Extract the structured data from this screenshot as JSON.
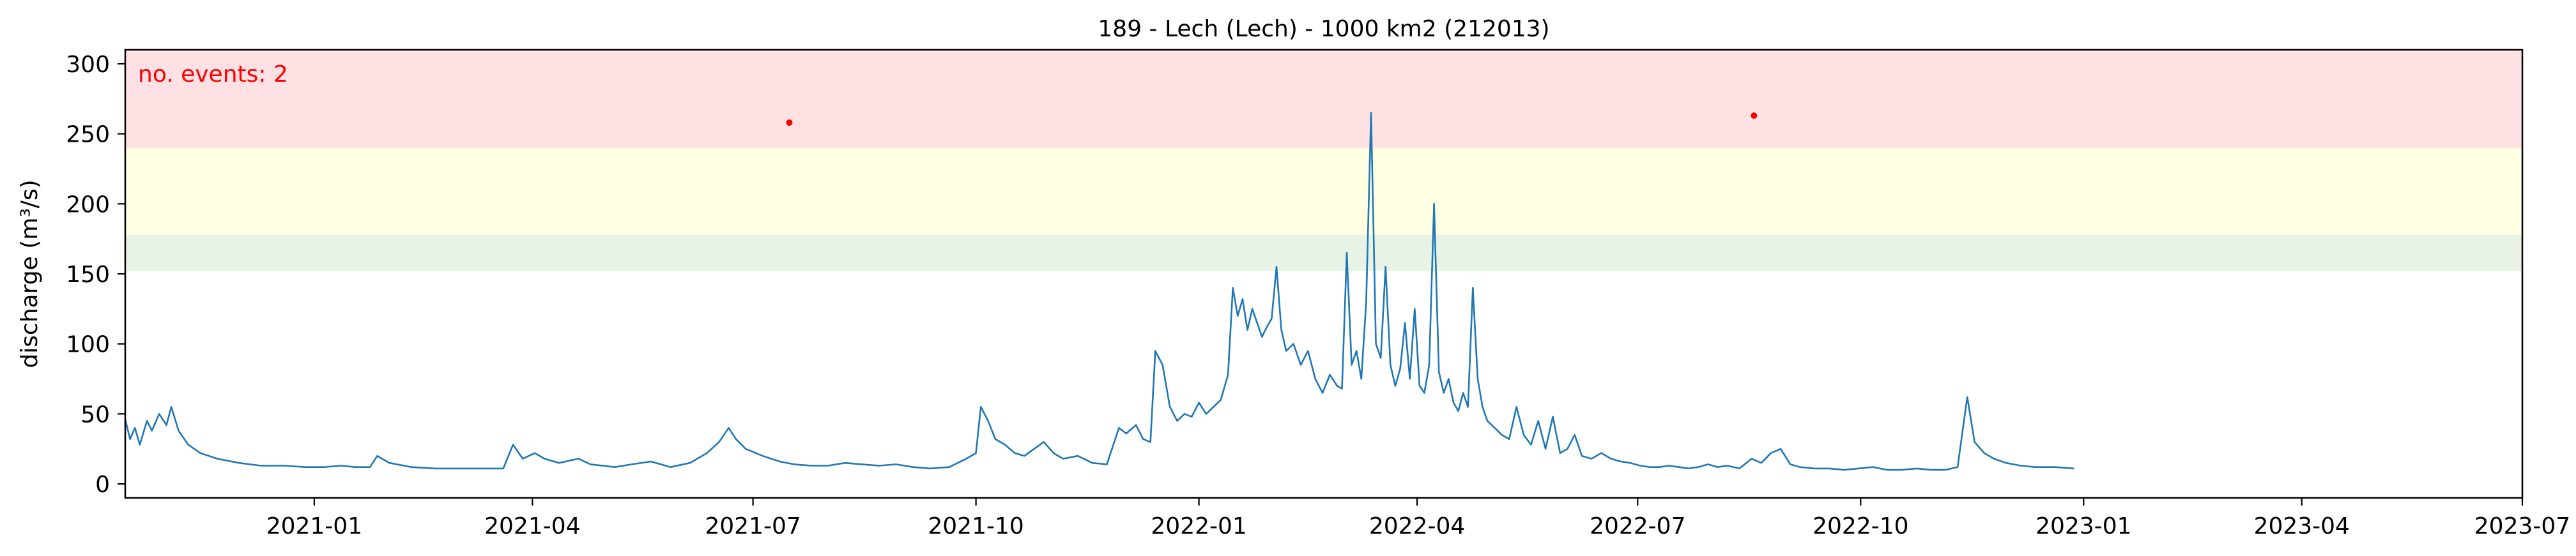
{
  "chart_data": {
    "type": "line",
    "title": "189 - Lech (Lech) - 1000 km2 (212013)",
    "xlabel": "",
    "ylabel": "discharge (m³/s)",
    "annotation": "no. events: 2",
    "x_range": [
      "2020-10-15",
      "2023-07-01"
    ],
    "ylim": [
      -10,
      310
    ],
    "x_ticks": [
      "2021-01",
      "2021-04",
      "2021-07",
      "2021-10",
      "2022-01",
      "2022-04",
      "2022-07",
      "2022-10",
      "2023-01",
      "2023-04",
      "2023-07"
    ],
    "y_ticks": [
      0,
      50,
      100,
      150,
      200,
      250,
      300
    ],
    "grid": false,
    "threshold_bands": [
      {
        "name": "band-green",
        "from": 152,
        "to": 178,
        "color": "#e8f3e6"
      },
      {
        "name": "band-yellow",
        "from": 178,
        "to": 240,
        "color": "#ffffe1"
      },
      {
        "name": "band-red",
        "from": 240,
        "to": 310,
        "color": "#ffe1e4"
      }
    ],
    "series": [
      {
        "color": "#1f77b4",
        "points": [
          [
            "2020-10-15",
            46
          ],
          [
            "2020-10-17",
            32
          ],
          [
            "2020-10-19",
            40
          ],
          [
            "2020-10-21",
            28
          ],
          [
            "2020-10-24",
            45
          ],
          [
            "2020-10-26",
            38
          ],
          [
            "2020-10-29",
            50
          ],
          [
            "2020-11-01",
            42
          ],
          [
            "2020-11-03",
            55
          ],
          [
            "2020-11-06",
            38
          ],
          [
            "2020-11-10",
            28
          ],
          [
            "2020-11-15",
            22
          ],
          [
            "2020-11-22",
            18
          ],
          [
            "2020-12-01",
            15
          ],
          [
            "2020-12-10",
            13
          ],
          [
            "2020-12-20",
            13
          ],
          [
            "2020-12-28",
            12
          ],
          [
            "2021-01-05",
            12
          ],
          [
            "2021-01-12",
            13
          ],
          [
            "2021-01-18",
            12
          ],
          [
            "2021-01-24",
            12
          ],
          [
            "2021-01-27",
            20
          ],
          [
            "2021-02-01",
            15
          ],
          [
            "2021-02-10",
            12
          ],
          [
            "2021-02-20",
            11
          ],
          [
            "2021-03-01",
            11
          ],
          [
            "2021-03-10",
            11
          ],
          [
            "2021-03-20",
            11
          ],
          [
            "2021-03-24",
            28
          ],
          [
            "2021-03-28",
            18
          ],
          [
            "2021-04-02",
            22
          ],
          [
            "2021-04-06",
            18
          ],
          [
            "2021-04-12",
            15
          ],
          [
            "2021-04-20",
            18
          ],
          [
            "2021-04-25",
            14
          ],
          [
            "2021-05-05",
            12
          ],
          [
            "2021-05-12",
            14
          ],
          [
            "2021-05-20",
            16
          ],
          [
            "2021-05-28",
            12
          ],
          [
            "2021-06-05",
            15
          ],
          [
            "2021-06-12",
            22
          ],
          [
            "2021-06-17",
            30
          ],
          [
            "2021-06-21",
            40
          ],
          [
            "2021-06-24",
            32
          ],
          [
            "2021-06-28",
            25
          ],
          [
            "2021-07-05",
            20
          ],
          [
            "2021-07-12",
            16
          ],
          [
            "2021-07-18",
            14
          ],
          [
            "2021-07-25",
            13
          ],
          [
            "2021-08-01",
            13
          ],
          [
            "2021-08-08",
            15
          ],
          [
            "2021-08-15",
            14
          ],
          [
            "2021-08-22",
            13
          ],
          [
            "2021-08-29",
            14
          ],
          [
            "2021-09-05",
            12
          ],
          [
            "2021-09-12",
            11
          ],
          [
            "2021-09-20",
            12
          ],
          [
            "2021-09-27",
            18
          ],
          [
            "2021-10-01",
            22
          ],
          [
            "2021-10-03",
            55
          ],
          [
            "2021-10-06",
            45
          ],
          [
            "2021-10-09",
            32
          ],
          [
            "2021-10-13",
            28
          ],
          [
            "2021-10-17",
            22
          ],
          [
            "2021-10-21",
            20
          ],
          [
            "2021-10-25",
            25
          ],
          [
            "2021-10-29",
            30
          ],
          [
            "2021-11-02",
            22
          ],
          [
            "2021-11-06",
            18
          ],
          [
            "2021-11-12",
            20
          ],
          [
            "2021-11-18",
            15
          ],
          [
            "2021-11-24",
            14
          ],
          [
            "2021-11-29",
            40
          ],
          [
            "2021-12-02",
            36
          ],
          [
            "2021-12-06",
            42
          ],
          [
            "2021-12-09",
            32
          ],
          [
            "2021-12-12",
            30
          ],
          [
            "2021-12-14",
            95
          ],
          [
            "2021-12-17",
            85
          ],
          [
            "2021-12-20",
            55
          ],
          [
            "2021-12-23",
            45
          ],
          [
            "2021-12-26",
            50
          ],
          [
            "2021-12-29",
            48
          ],
          [
            "2022-01-01",
            58
          ],
          [
            "2022-01-04",
            50
          ],
          [
            "2022-01-07",
            55
          ],
          [
            "2022-01-10",
            60
          ],
          [
            "2022-01-13",
            78
          ],
          [
            "2022-01-15",
            140
          ],
          [
            "2022-01-17",
            120
          ],
          [
            "2022-01-19",
            132
          ],
          [
            "2022-01-21",
            110
          ],
          [
            "2022-01-23",
            125
          ],
          [
            "2022-01-25",
            115
          ],
          [
            "2022-01-27",
            105
          ],
          [
            "2022-01-29",
            112
          ],
          [
            "2022-01-31",
            118
          ],
          [
            "2022-02-02",
            155
          ],
          [
            "2022-02-04",
            110
          ],
          [
            "2022-02-06",
            95
          ],
          [
            "2022-02-09",
            100
          ],
          [
            "2022-02-12",
            85
          ],
          [
            "2022-02-15",
            95
          ],
          [
            "2022-02-18",
            75
          ],
          [
            "2022-02-21",
            65
          ],
          [
            "2022-02-24",
            78
          ],
          [
            "2022-02-27",
            70
          ],
          [
            "2022-03-01",
            68
          ],
          [
            "2022-03-03",
            165
          ],
          [
            "2022-03-05",
            85
          ],
          [
            "2022-03-07",
            95
          ],
          [
            "2022-03-09",
            75
          ],
          [
            "2022-03-11",
            130
          ],
          [
            "2022-03-13",
            265
          ],
          [
            "2022-03-15",
            100
          ],
          [
            "2022-03-17",
            90
          ],
          [
            "2022-03-19",
            155
          ],
          [
            "2022-03-21",
            85
          ],
          [
            "2022-03-23",
            70
          ],
          [
            "2022-03-25",
            82
          ],
          [
            "2022-03-27",
            115
          ],
          [
            "2022-03-29",
            75
          ],
          [
            "2022-03-31",
            125
          ],
          [
            "2022-04-02",
            70
          ],
          [
            "2022-04-04",
            65
          ],
          [
            "2022-04-06",
            85
          ],
          [
            "2022-04-08",
            200
          ],
          [
            "2022-04-10",
            80
          ],
          [
            "2022-04-12",
            65
          ],
          [
            "2022-04-14",
            75
          ],
          [
            "2022-04-16",
            58
          ],
          [
            "2022-04-18",
            52
          ],
          [
            "2022-04-20",
            65
          ],
          [
            "2022-04-22",
            55
          ],
          [
            "2022-04-24",
            140
          ],
          [
            "2022-04-26",
            75
          ],
          [
            "2022-04-28",
            55
          ],
          [
            "2022-04-30",
            45
          ],
          [
            "2022-05-03",
            40
          ],
          [
            "2022-05-06",
            35
          ],
          [
            "2022-05-09",
            32
          ],
          [
            "2022-05-12",
            55
          ],
          [
            "2022-05-15",
            35
          ],
          [
            "2022-05-18",
            28
          ],
          [
            "2022-05-21",
            45
          ],
          [
            "2022-05-24",
            25
          ],
          [
            "2022-05-27",
            48
          ],
          [
            "2022-05-30",
            22
          ],
          [
            "2022-06-02",
            25
          ],
          [
            "2022-06-05",
            35
          ],
          [
            "2022-06-08",
            20
          ],
          [
            "2022-06-12",
            18
          ],
          [
            "2022-06-16",
            22
          ],
          [
            "2022-06-20",
            18
          ],
          [
            "2022-06-24",
            16
          ],
          [
            "2022-06-28",
            15
          ],
          [
            "2022-07-02",
            13
          ],
          [
            "2022-07-06",
            12
          ],
          [
            "2022-07-10",
            12
          ],
          [
            "2022-07-14",
            13
          ],
          [
            "2022-07-18",
            12
          ],
          [
            "2022-07-22",
            11
          ],
          [
            "2022-07-26",
            12
          ],
          [
            "2022-07-30",
            14
          ],
          [
            "2022-08-03",
            12
          ],
          [
            "2022-08-07",
            13
          ],
          [
            "2022-08-12",
            11
          ],
          [
            "2022-08-17",
            18
          ],
          [
            "2022-08-21",
            15
          ],
          [
            "2022-08-25",
            22
          ],
          [
            "2022-08-29",
            25
          ],
          [
            "2022-09-02",
            14
          ],
          [
            "2022-09-06",
            12
          ],
          [
            "2022-09-12",
            11
          ],
          [
            "2022-09-18",
            11
          ],
          [
            "2022-09-24",
            10
          ],
          [
            "2022-09-30",
            11
          ],
          [
            "2022-10-06",
            12
          ],
          [
            "2022-10-12",
            10
          ],
          [
            "2022-10-18",
            10
          ],
          [
            "2022-10-24",
            11
          ],
          [
            "2022-10-30",
            10
          ],
          [
            "2022-11-05",
            10
          ],
          [
            "2022-11-10",
            12
          ],
          [
            "2022-11-14",
            62
          ],
          [
            "2022-11-17",
            30
          ],
          [
            "2022-11-21",
            22
          ],
          [
            "2022-11-25",
            18
          ],
          [
            "2022-11-30",
            15
          ],
          [
            "2022-12-06",
            13
          ],
          [
            "2022-12-12",
            12
          ],
          [
            "2022-12-20",
            12
          ],
          [
            "2022-12-28",
            11
          ]
        ]
      }
    ],
    "events": [
      {
        "x": "2021-07-16",
        "y": 258,
        "color": "#ff0000"
      },
      {
        "x": "2022-08-18",
        "y": 263,
        "color": "#ff0000"
      }
    ]
  }
}
